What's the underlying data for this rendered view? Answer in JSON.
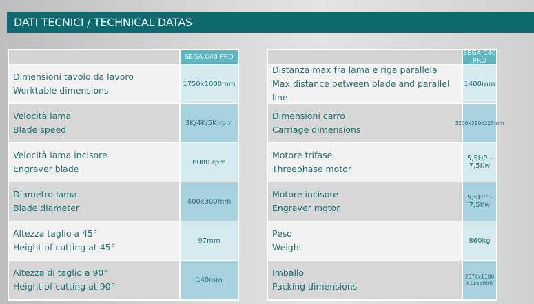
{
  "title": "DATI TECNICI / TECHNICAL DATAS",
  "model": "SEGA C40 PRO",
  "left_table": [
    {
      "it": "Dimensioni tavolo da lavoro",
      "en": "Worktable dimensions",
      "value": "1750x1000mm"
    },
    {
      "it": "Velocità lama",
      "en": "Blade speed",
      "value": "3K/4K/5K rpm"
    },
    {
      "it": "Velocità lama incisore",
      "en": "Engraver blade",
      "value": "8000 rpm"
    },
    {
      "it": "Diametro lama",
      "en": "Blade diameter",
      "value": "400x300mm"
    },
    {
      "it": "Altezza taglio a 45°",
      "en": "Height of cutting at 45°",
      "value": "97mm"
    },
    {
      "it": "Altezza di taglio a 90°",
      "en": "Height of cutting at 90°",
      "value": "140mm"
    }
  ],
  "right_table": [
    {
      "it": "Distanza max fra lama e riga parallela",
      "en": "Max distance between blade and parallel line",
      "value": "1400mm"
    },
    {
      "it": "Dimensioni carro",
      "en": "Carriage dimensions",
      "value": "3200x390x223mm"
    },
    {
      "it": "Motore trifase",
      "en": "Threephase motor",
      "value": "5,5HP - 7,5Kw"
    },
    {
      "it": "Motore incisore",
      "en": "Engraver motor",
      "value": "5,5HP - 7,5Kw"
    },
    {
      "it": "Peso",
      "en": "Weight",
      "value": "860kg"
    },
    {
      "it": "Imballo",
      "en": "Packing dimensions",
      "value": "2074x1100 x1158mm"
    }
  ]
}
